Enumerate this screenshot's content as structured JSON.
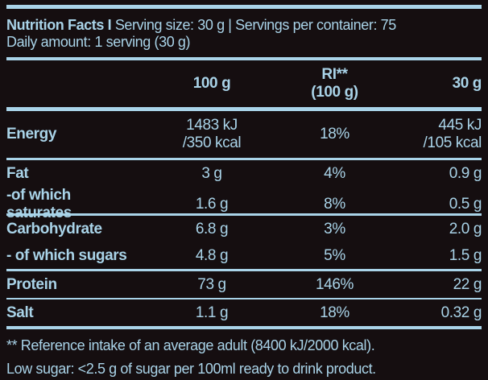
{
  "colors": {
    "background": "#150e10",
    "text": "#a9d3e8",
    "rule": "#a9d3e8"
  },
  "header": {
    "title_bold": "Nutrition Facts I",
    "title_rest": " Serving size: 30 g | Servings per container: 75",
    "daily_amount": "Daily amount: 1 serving (30 g)"
  },
  "table": {
    "columns": {
      "label": "",
      "per100g": "100 g",
      "ri": "RI**\n(100 g)",
      "per30g": "30 g"
    },
    "rows": [
      {
        "label": "Energy",
        "per100g": "1483 kJ\n/350 kcal",
        "ri": "18%",
        "per30g": "445 kJ\n/105 kcal"
      },
      {
        "label": "Fat",
        "per100g": "3 g",
        "ri": "4%",
        "per30g": "0.9 g"
      },
      {
        "label": "-of which saturates",
        "per100g": "1.6 g",
        "ri": "8%",
        "per30g": "0.5 g"
      },
      {
        "label": "Carbohydrate",
        "per100g": "6.8 g",
        "ri": "3%",
        "per30g": "2.0 g"
      },
      {
        "label": "- of which sugars",
        "per100g": "4.8 g",
        "ri": "5%",
        "per30g": "1.5 g"
      },
      {
        "label": "Protein",
        "per100g": "73 g",
        "ri": "146%",
        "per30g": "22 g"
      },
      {
        "label": "Salt",
        "per100g": "1.1 g",
        "ri": "18%",
        "per30g": "0.32 g"
      }
    ]
  },
  "footer": {
    "reference_note": "** Reference intake of an average adult (8400 kJ/2000 kcal).",
    "low_sugar_note": "Low sugar: <2.5 g of sugar per 100ml ready to drink product."
  }
}
